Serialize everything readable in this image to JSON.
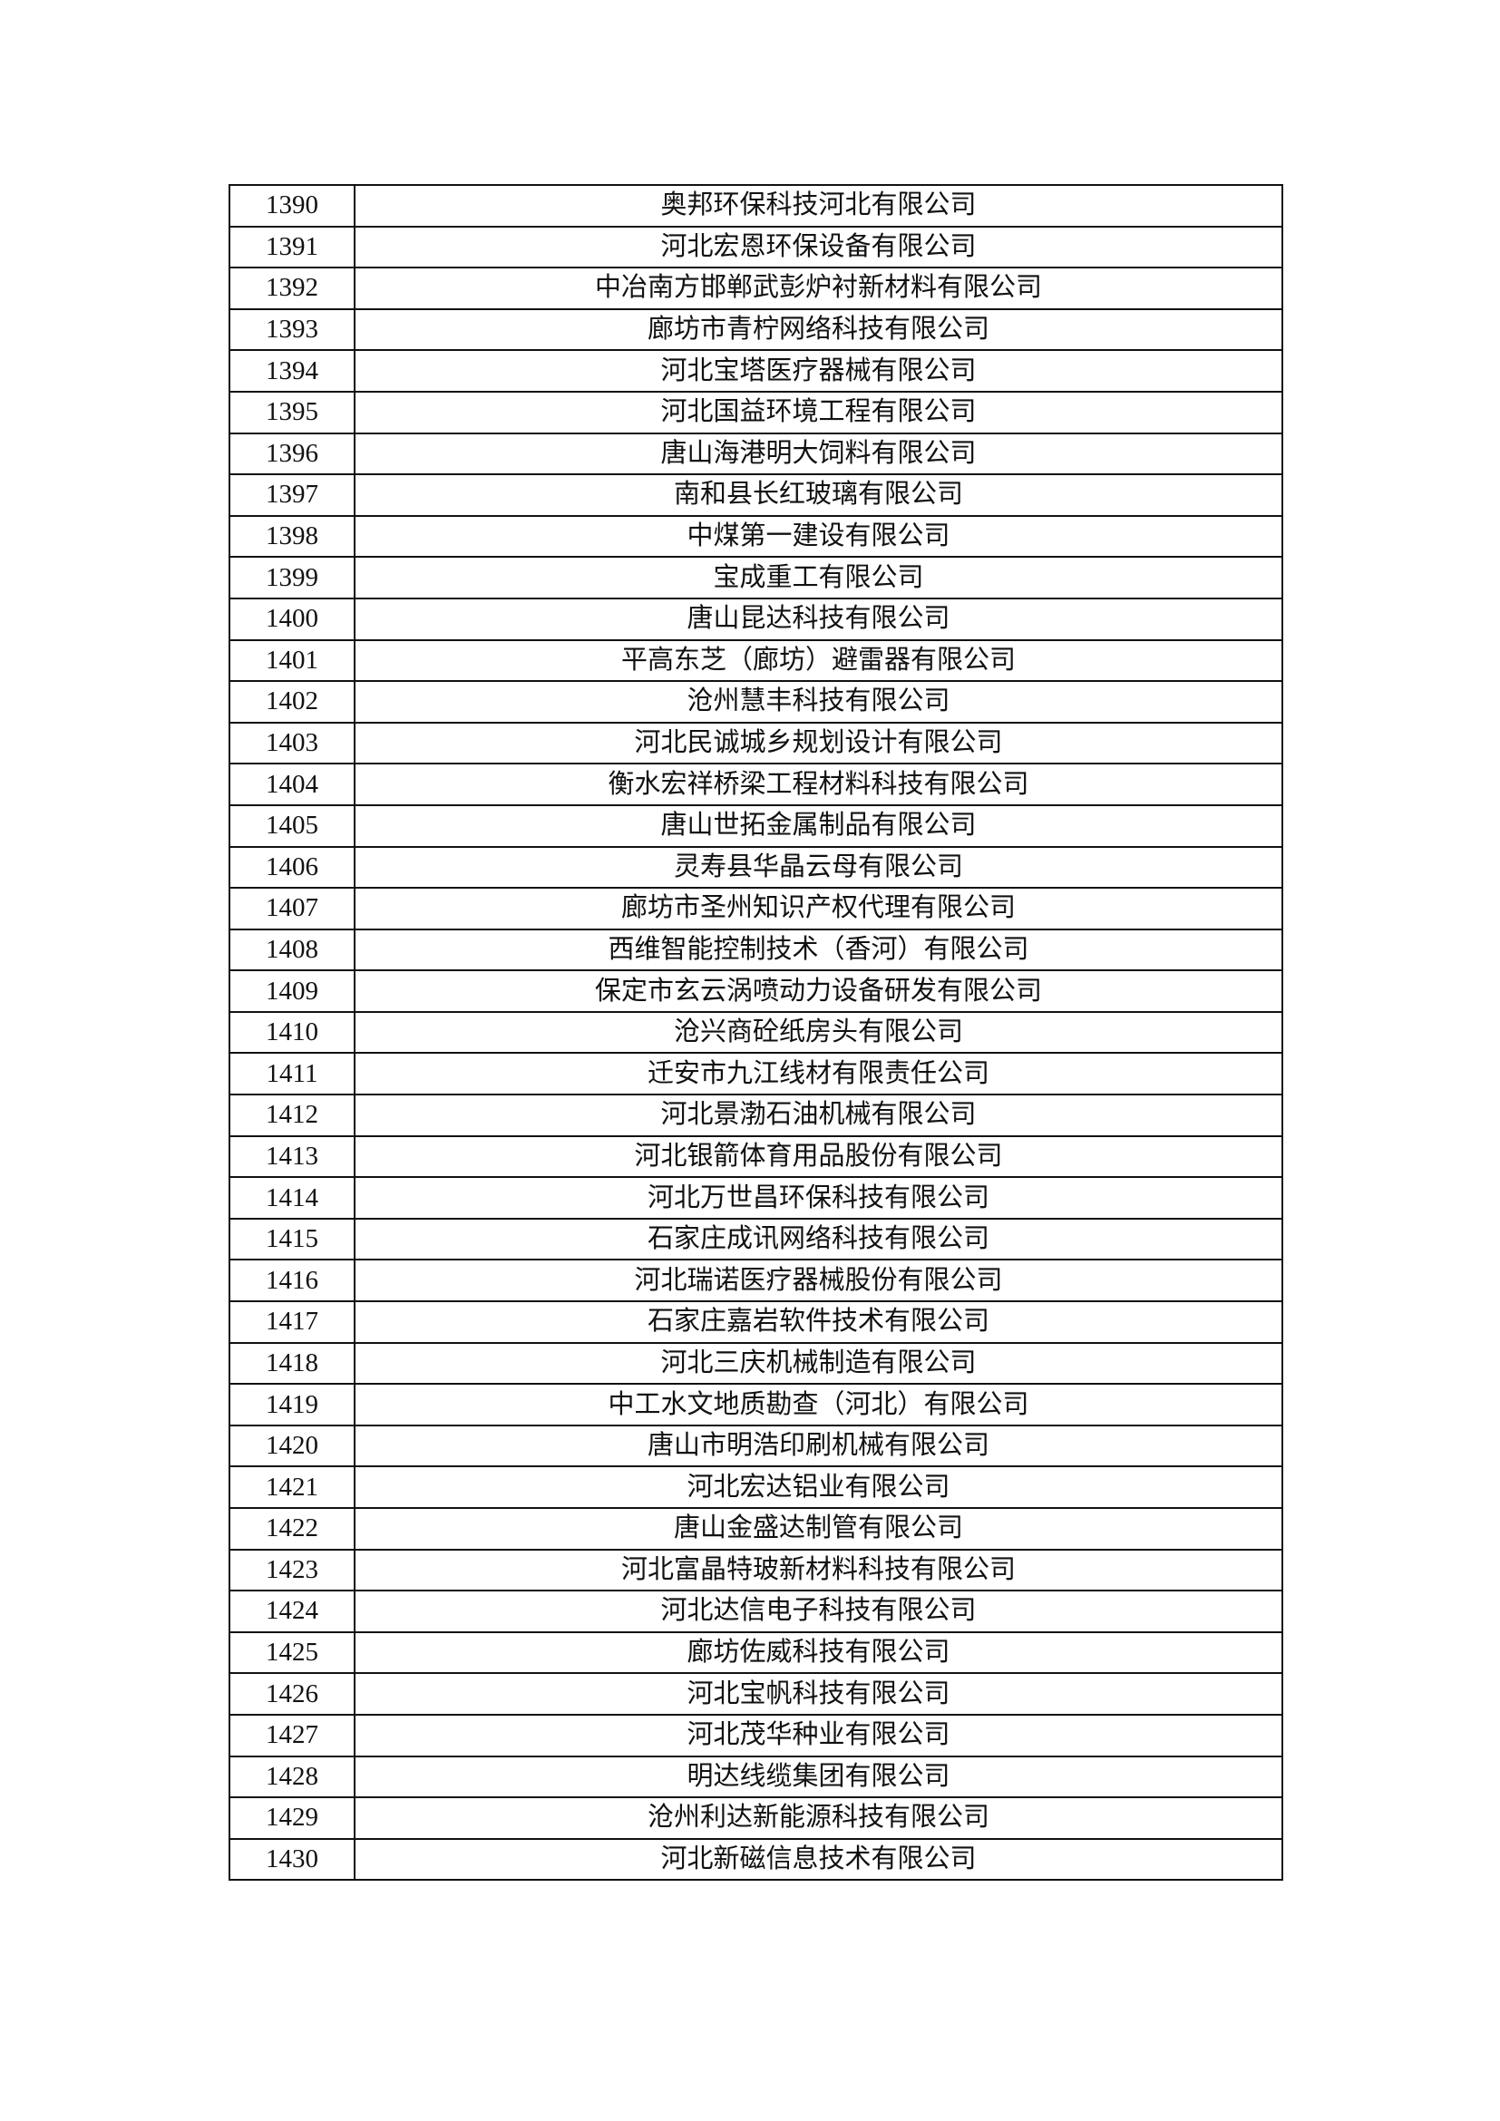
{
  "rows": [
    {
      "no": "1390",
      "name": "奥邦环保科技河北有限公司"
    },
    {
      "no": "1391",
      "name": "河北宏恩环保设备有限公司"
    },
    {
      "no": "1392",
      "name": "中冶南方邯郸武彭炉衬新材料有限公司"
    },
    {
      "no": "1393",
      "name": "廊坊市青柠网络科技有限公司"
    },
    {
      "no": "1394",
      "name": "河北宝塔医疗器械有限公司"
    },
    {
      "no": "1395",
      "name": "河北国益环境工程有限公司"
    },
    {
      "no": "1396",
      "name": "唐山海港明大饲料有限公司"
    },
    {
      "no": "1397",
      "name": "南和县长红玻璃有限公司"
    },
    {
      "no": "1398",
      "name": "中煤第一建设有限公司"
    },
    {
      "no": "1399",
      "name": "宝成重工有限公司"
    },
    {
      "no": "1400",
      "name": "唐山昆达科技有限公司"
    },
    {
      "no": "1401",
      "name": "平高东芝（廊坊）避雷器有限公司"
    },
    {
      "no": "1402",
      "name": "沧州慧丰科技有限公司"
    },
    {
      "no": "1403",
      "name": "河北民诚城乡规划设计有限公司"
    },
    {
      "no": "1404",
      "name": "衡水宏祥桥梁工程材料科技有限公司"
    },
    {
      "no": "1405",
      "name": "唐山世拓金属制品有限公司"
    },
    {
      "no": "1406",
      "name": "灵寿县华晶云母有限公司"
    },
    {
      "no": "1407",
      "name": "廊坊市圣州知识产权代理有限公司"
    },
    {
      "no": "1408",
      "name": "西维智能控制技术（香河）有限公司"
    },
    {
      "no": "1409",
      "name": "保定市玄云涡喷动力设备研发有限公司"
    },
    {
      "no": "1410",
      "name": "沧兴商砼纸房头有限公司"
    },
    {
      "no": "1411",
      "name": "迁安市九江线材有限责任公司"
    },
    {
      "no": "1412",
      "name": "河北景渤石油机械有限公司"
    },
    {
      "no": "1413",
      "name": "河北银箭体育用品股份有限公司"
    },
    {
      "no": "1414",
      "name": "河北万世昌环保科技有限公司"
    },
    {
      "no": "1415",
      "name": "石家庄成讯网络科技有限公司"
    },
    {
      "no": "1416",
      "name": "河北瑞诺医疗器械股份有限公司"
    },
    {
      "no": "1417",
      "name": "石家庄嘉岩软件技术有限公司"
    },
    {
      "no": "1418",
      "name": "河北三庆机械制造有限公司"
    },
    {
      "no": "1419",
      "name": "中工水文地质勘查（河北）有限公司"
    },
    {
      "no": "1420",
      "name": "唐山市明浩印刷机械有限公司"
    },
    {
      "no": "1421",
      "name": "河北宏达铝业有限公司"
    },
    {
      "no": "1422",
      "name": "唐山金盛达制管有限公司"
    },
    {
      "no": "1423",
      "name": "河北富晶特玻新材料科技有限公司"
    },
    {
      "no": "1424",
      "name": "河北达信电子科技有限公司"
    },
    {
      "no": "1425",
      "name": "廊坊佐威科技有限公司"
    },
    {
      "no": "1426",
      "name": "河北宝帆科技有限公司"
    },
    {
      "no": "1427",
      "name": "河北茂华种业有限公司"
    },
    {
      "no": "1428",
      "name": "明达线缆集团有限公司"
    },
    {
      "no": "1429",
      "name": "沧州利达新能源科技有限公司"
    },
    {
      "no": "1430",
      "name": "河北新磁信息技术有限公司"
    }
  ]
}
